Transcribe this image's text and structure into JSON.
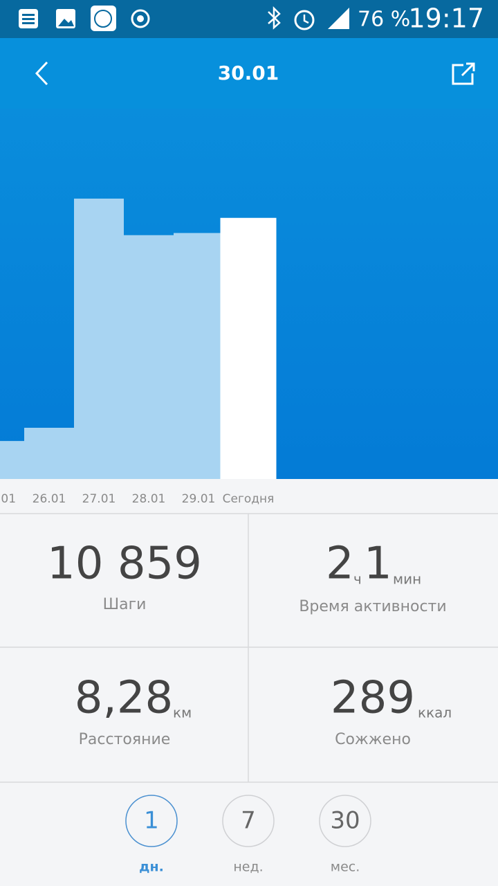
{
  "status_bar": {
    "battery": "76 %",
    "time": "19:17"
  },
  "header": {
    "title": "30.01"
  },
  "chart_data": {
    "type": "bar",
    "categories": [
      ".01",
      "26.01",
      "27.01",
      "28.01",
      "29.01",
      "Сегодня"
    ],
    "values": [
      1580,
      2130,
      11660,
      10140,
      10230,
      10859
    ],
    "color": "#a8d4f2",
    "highlight_color": "#ffffff",
    "ylim": [
      0,
      15400
    ]
  },
  "stats": [
    {
      "value": "10 859",
      "label": "Шаги"
    },
    {
      "hours": "2",
      "hours_unit": "ч",
      "minutes": "1",
      "minutes_unit": "мин",
      "label": "Время активности"
    },
    {
      "value": "8,28",
      "unit": "км",
      "label": "Расстояние"
    },
    {
      "value": "289",
      "unit": "ккал",
      "label": "Сожжено"
    }
  ],
  "periods": [
    {
      "number": "1",
      "label": "дн."
    },
    {
      "number": "7",
      "label": "нед."
    },
    {
      "number": "30",
      "label": "мес."
    }
  ]
}
